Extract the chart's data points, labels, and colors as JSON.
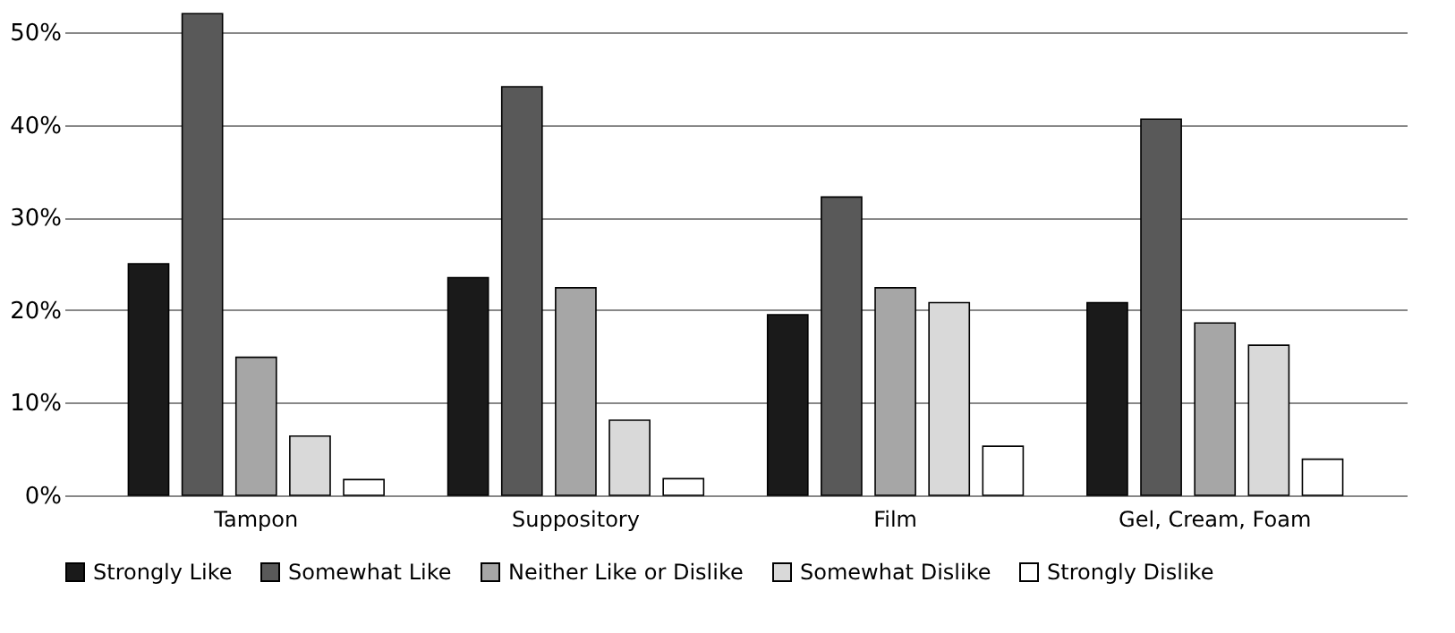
{
  "chart_data": {
    "type": "bar",
    "categories": [
      "Tampon",
      "Suppository",
      "Film",
      "Gel, Cream, Foam"
    ],
    "series": [
      {
        "name": "Strongly Like",
        "color": "#1a1a1a",
        "values": [
          25,
          23.5,
          19.5,
          20.8
        ]
      },
      {
        "name": "Somewhat Like",
        "color": "#595959",
        "values": [
          52,
          44.1,
          32.2,
          40.6
        ]
      },
      {
        "name": "Neither Like or Dislike",
        "color": "#a6a6a6",
        "values": [
          14.9,
          22.4,
          22.4,
          18.6
        ]
      },
      {
        "name": "Somewhat Dislike",
        "color": "#d9d9d9",
        "values": [
          6.4,
          8.1,
          20.8,
          16.2
        ]
      },
      {
        "name": "Strongly Dislike",
        "color": "#ffffff",
        "values": [
          1.7,
          1.8,
          5.3,
          3.9
        ]
      }
    ],
    "ylim": [
      0,
      52.5
    ],
    "yticks": [
      {
        "value": 0,
        "label": "0%"
      },
      {
        "value": 10,
        "label": "10%"
      },
      {
        "value": 20,
        "label": "20%"
      },
      {
        "value": 30,
        "label": "30%"
      },
      {
        "value": 40,
        "label": "40%"
      },
      {
        "value": 50,
        "label": "50%"
      }
    ],
    "grid": "y",
    "legend": "bottom"
  }
}
